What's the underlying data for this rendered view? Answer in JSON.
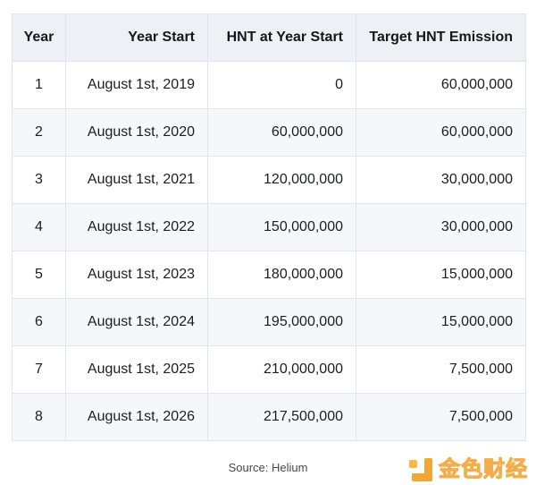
{
  "chart_data": {
    "type": "table",
    "columns": [
      "Year",
      "Year Start",
      "HNT at Year Start",
      "Target HNT Emission"
    ],
    "rows": [
      [
        "1",
        "August 1st, 2019",
        "0",
        "60,000,000"
      ],
      [
        "2",
        "August 1st, 2020",
        "60,000,000",
        "60,000,000"
      ],
      [
        "3",
        "August 1st, 2021",
        "120,000,000",
        "30,000,000"
      ],
      [
        "4",
        "August 1st, 2022",
        "150,000,000",
        "30,000,000"
      ],
      [
        "5",
        "August 1st, 2023",
        "180,000,000",
        "15,000,000"
      ],
      [
        "6",
        "August 1st, 2024",
        "195,000,000",
        "15,000,000"
      ],
      [
        "7",
        "August 1st, 2025",
        "210,000,000",
        "7,500,000"
      ],
      [
        "8",
        "August 1st, 2026",
        "217,500,000",
        "7,500,000"
      ]
    ],
    "source": "Source: Helium",
    "layout": {
      "column_alignments": [
        "center",
        "right",
        "right",
        "right"
      ],
      "striped": true,
      "grid": true
    }
  },
  "watermark": {
    "brand_text": "金色财经",
    "logo_icon": "jinse-finance-logo-icon"
  },
  "colors": {
    "header_bg": "#eef0f6",
    "stripe_bg": "#f6f7fb",
    "border": "#e2e4eb",
    "text": "#1b1d22",
    "source_text": "#45484e",
    "watermark_orange": "#f0a028"
  }
}
